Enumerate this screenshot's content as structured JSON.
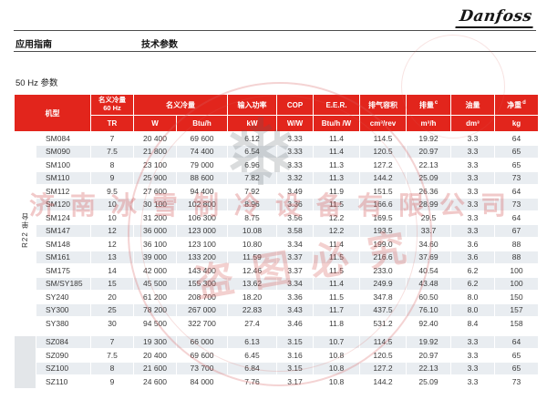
{
  "colors": {
    "header-red": "#e2251c",
    "stripe": "#e9edf1",
    "sz-strip": "#e3e6e9"
  },
  "page": {
    "logo_text": "Danfoss",
    "header_left": "应用指南",
    "header_right": "技术参数",
    "section_title": "50 Hz 参数"
  },
  "watermark": {
    "company": "济南冰雪制冷设备有限公司",
    "notice": "盗图必究",
    "snowflake_icon": "❄"
  },
  "table": {
    "header": {
      "model": "机型",
      "nominal_60hz": {
        "line1": "名义冷量",
        "line2": "60 Hz"
      },
      "nominal": "名义冷量",
      "input_power": "输入功率",
      "cop": "COP",
      "eer": "E.E.R.",
      "swept_volume": "排气容积",
      "displacement": {
        "label": "排量",
        "sup": "c"
      },
      "oil_charge": "油量",
      "net_weight": {
        "label": "净重",
        "sup": "d"
      },
      "units": [
        "TR",
        "W",
        "Btu/h",
        "kW",
        "W/W",
        "Btu/h /W",
        "cm³/rev",
        "m³/h",
        "dm³",
        "kg"
      ]
    },
    "groups": [
      {
        "label": "R22 单台",
        "rows": [
          [
            "SM084",
            "7",
            "20 400",
            "69 600",
            "6.12",
            "3.33",
            "11.4",
            "114.5",
            "19.92",
            "3.3",
            "64"
          ],
          [
            "SM090",
            "7.5",
            "21 800",
            "74 400",
            "6.54",
            "3.33",
            "11.4",
            "120.5",
            "20.97",
            "3.3",
            "65"
          ],
          [
            "SM100",
            "8",
            "23 100",
            "79 000",
            "6.96",
            "3.33",
            "11.3",
            "127.2",
            "22.13",
            "3.3",
            "65"
          ],
          [
            "SM110",
            "9",
            "25 900",
            "88 600",
            "7.82",
            "3.32",
            "11.3",
            "144.2",
            "25.09",
            "3.3",
            "73"
          ],
          [
            "SM112",
            "9.5",
            "27 600",
            "94 400",
            "7.92",
            "3.49",
            "11.9",
            "151.5",
            "26.36",
            "3.3",
            "64"
          ],
          [
            "SM120",
            "10",
            "30 100",
            "102 800",
            "8.96",
            "3.36",
            "11.5",
            "166.6",
            "28.99",
            "3.3",
            "73"
          ],
          [
            "SM124",
            "10",
            "31 200",
            "106 300",
            "8.75",
            "3.56",
            "12.2",
            "169.5",
            "29.5",
            "3.3",
            "64"
          ],
          [
            "SM147",
            "12",
            "36 000",
            "123 000",
            "10.08",
            "3.58",
            "12.2",
            "193.5",
            "33.7",
            "3.3",
            "67"
          ],
          [
            "SM148",
            "12",
            "36 100",
            "123 100",
            "10.80",
            "3.34",
            "11.4",
            "199.0",
            "34.60",
            "3.6",
            "88"
          ],
          [
            "SM161",
            "13",
            "39 000",
            "133 200",
            "11.59",
            "3.37",
            "11.5",
            "216.6",
            "37.69",
            "3.6",
            "88"
          ],
          [
            "SM175",
            "14",
            "42 000",
            "143 400",
            "12.46",
            "3.37",
            "11.5",
            "233.0",
            "40.54",
            "6.2",
            "100"
          ],
          [
            "SM/SY185",
            "15",
            "45 500",
            "155 300",
            "13.62",
            "3.34",
            "11.4",
            "249.9",
            "43.48",
            "6.2",
            "100"
          ],
          [
            "SY240",
            "20",
            "61 200",
            "208 700",
            "18.20",
            "3.36",
            "11.5",
            "347.8",
            "60.50",
            "8.0",
            "150"
          ],
          [
            "SY300",
            "25",
            "78 200",
            "267 000",
            "22.83",
            "3.43",
            "11.7",
            "437.5",
            "76.10",
            "8.0",
            "157"
          ],
          [
            "SY380",
            "30",
            "94 500",
            "322 700",
            "27.4",
            "3.46",
            "11.8",
            "531.2",
            "92.40",
            "8.4",
            "158"
          ]
        ]
      },
      {
        "label": "",
        "rows": [
          [
            "SZ084",
            "7",
            "19 300",
            "66 000",
            "6.13",
            "3.15",
            "10.7",
            "114.5",
            "19.92",
            "3.3",
            "64"
          ],
          [
            "SZ090",
            "7.5",
            "20 400",
            "69 600",
            "6.45",
            "3.16",
            "10.8",
            "120.5",
            "20.97",
            "3.3",
            "65"
          ],
          [
            "SZ100",
            "8",
            "21 600",
            "73 700",
            "6.84",
            "3.15",
            "10.8",
            "127.2",
            "22.13",
            "3.3",
            "65"
          ],
          [
            "SZ110",
            "9",
            "24 600",
            "84 000",
            "7.76",
            "3.17",
            "10.8",
            "144.2",
            "25.09",
            "3.3",
            "73"
          ]
        ]
      }
    ]
  }
}
